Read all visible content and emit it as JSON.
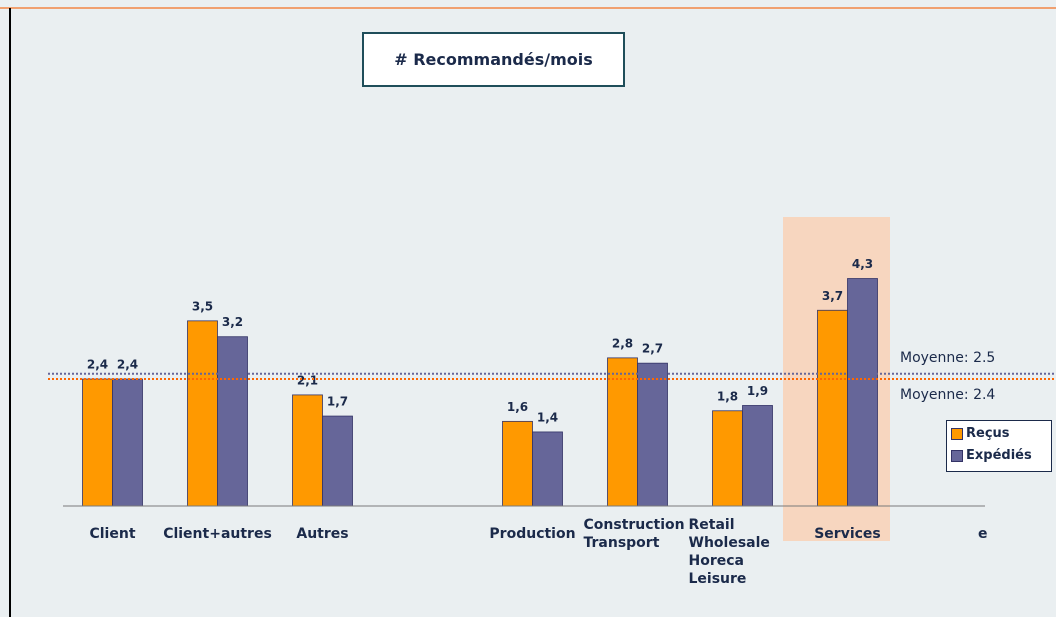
{
  "chart_data": {
    "type": "bar",
    "title": "# Recommandés/mois",
    "categories": [
      "Client",
      "Client+autres",
      "Autres",
      null,
      "Production",
      "Construction\nTransport",
      "Retail\nWholesale\nHoreca\nLeisure",
      "Services"
    ],
    "series": [
      {
        "name": "Reçus",
        "color": "#ff9900",
        "values": [
          2.4,
          3.5,
          2.1,
          null,
          1.6,
          2.8,
          1.8,
          3.7
        ],
        "value_labels": [
          "2,4",
          "3,5",
          "2,1",
          null,
          "1,6",
          "2,8",
          "1,8",
          "3,7"
        ]
      },
      {
        "name": "Expédiés",
        "color": "#666699",
        "values": [
          2.4,
          3.2,
          1.7,
          null,
          1.4,
          2.7,
          1.9,
          4.3
        ],
        "value_labels": [
          "2,4",
          "3,2",
          "1,7",
          null,
          "1,4",
          "2,7",
          "1,9",
          "4,3"
        ]
      }
    ],
    "ylim": [
      0,
      5
    ],
    "reference_lines": [
      {
        "label": "Moyenne: 2.5",
        "value": 2.5,
        "color": "#666699"
      },
      {
        "label": "Moyenne: 2.4",
        "value": 2.4,
        "color": "#ff6600"
      }
    ],
    "legend": "right",
    "stray_text": "e"
  }
}
